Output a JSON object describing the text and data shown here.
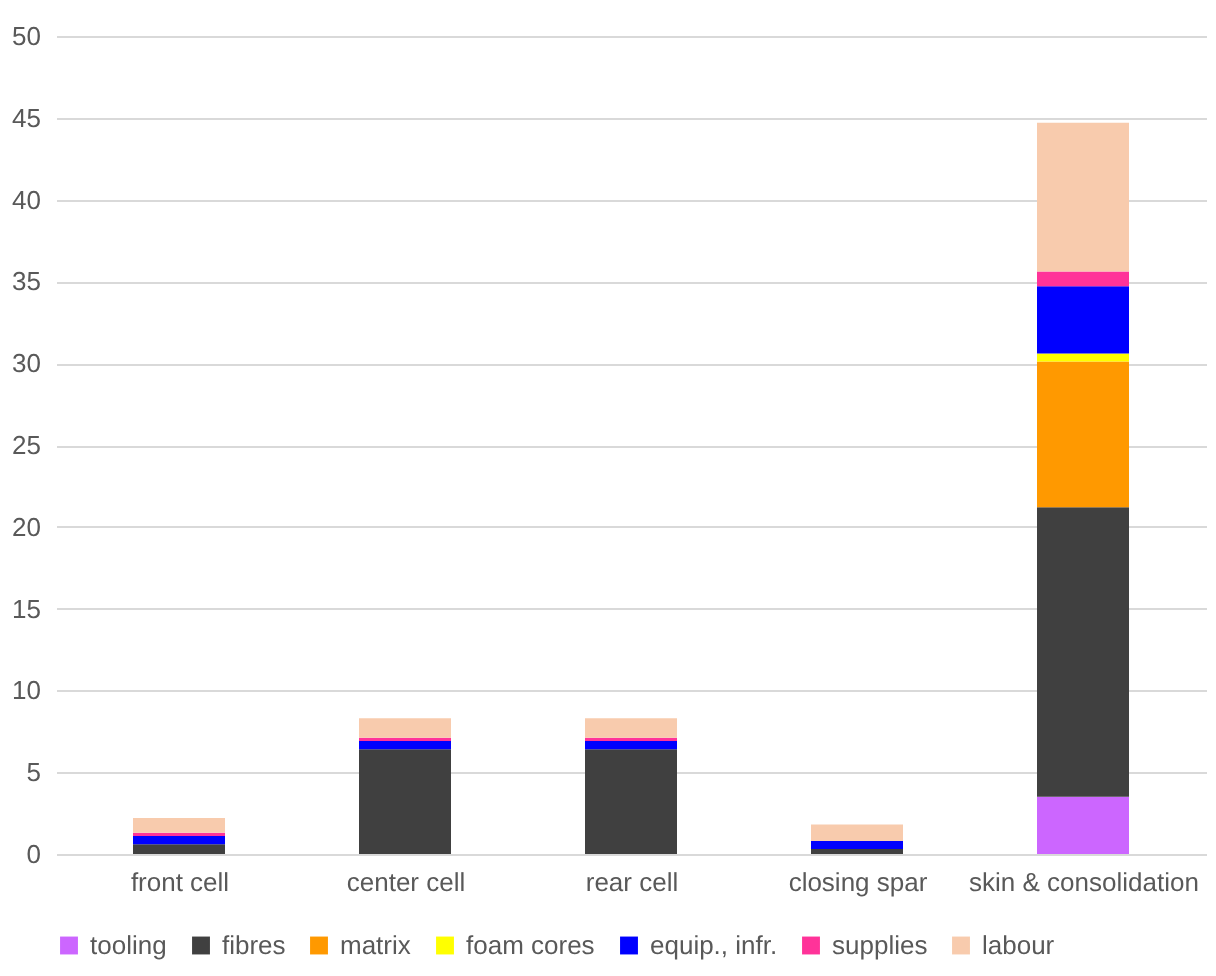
{
  "chart_data": {
    "type": "bar",
    "stacked": true,
    "categories": [
      "front cell",
      "center cell",
      "rear cell",
      "closing spar",
      "skin & consolidation"
    ],
    "series": [
      {
        "name": "tooling",
        "color": "#cc66ff",
        "values": [
          0,
          0,
          0,
          0,
          3.5
        ]
      },
      {
        "name": "fibres",
        "color": "#404040",
        "values": [
          0.6,
          6.4,
          6.4,
          0.3,
          17.7
        ]
      },
      {
        "name": "matrix",
        "color": "#ff9900",
        "values": [
          0,
          0,
          0,
          0,
          8.9
        ]
      },
      {
        "name": "foam cores",
        "color": "#ffff00",
        "values": [
          0,
          0,
          0,
          0,
          0.5
        ]
      },
      {
        "name": "equip., infr.",
        "color": "#0000ff",
        "values": [
          0.5,
          0.5,
          0.5,
          0.5,
          4.1
        ]
      },
      {
        "name": "supplies",
        "color": "#ff3399",
        "values": [
          0.2,
          0.2,
          0.2,
          0,
          0.9
        ]
      },
      {
        "name": "labour",
        "color": "#f8cbad",
        "values": [
          0.9,
          1.2,
          1.2,
          1.0,
          9.1
        ]
      }
    ],
    "ylim": [
      0,
      50
    ],
    "yticks": [
      0,
      5,
      10,
      15,
      20,
      25,
      30,
      35,
      40,
      45,
      50
    ],
    "grid": "y",
    "legend": "bottom"
  }
}
